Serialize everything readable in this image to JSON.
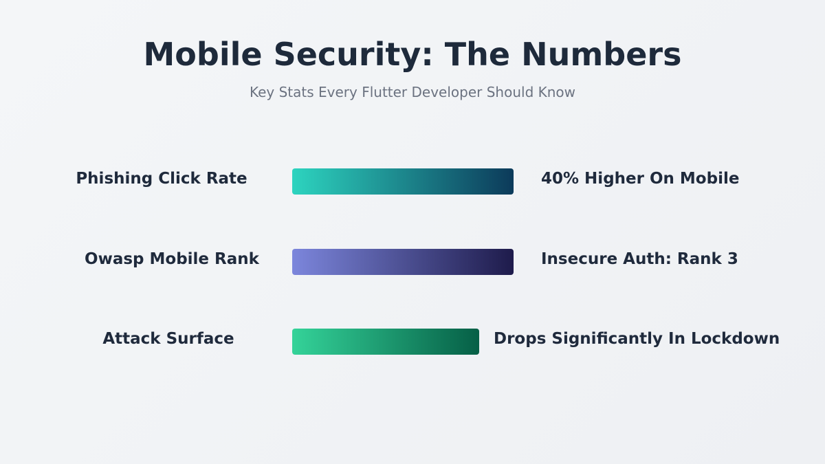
{
  "header": {
    "title": "Mobile Security: The Numbers",
    "subtitle": "Key Stats Every Flutter Developer Should Know"
  },
  "stats": [
    {
      "label": "Phishing Click Rate",
      "value": "40% Higher On Mobile",
      "gradient": [
        "#2dd4bf",
        "#0c3a5a"
      ]
    },
    {
      "label": "Owasp Mobile Rank",
      "value": "Insecure Auth: Rank 3",
      "gradient": [
        "#7c86dc",
        "#1e1b4b"
      ]
    },
    {
      "label": "Attack Surface",
      "value": "Drops Significantly In Lockdown",
      "gradient": [
        "#34d399",
        "#065f46"
      ]
    }
  ]
}
